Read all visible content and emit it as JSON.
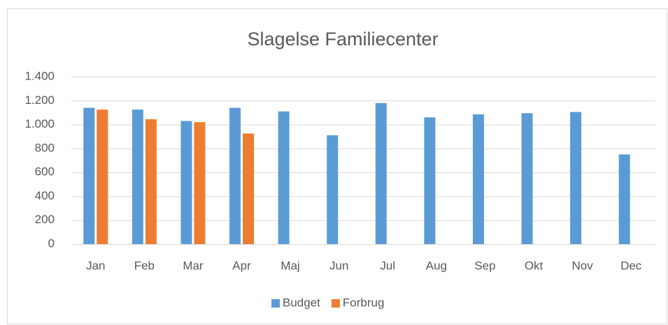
{
  "chart_data": {
    "type": "bar",
    "title": "Slagelse Familiecenter",
    "categories": [
      "Jan",
      "Feb",
      "Mar",
      "Apr",
      "Maj",
      "Jun",
      "Jul",
      "Aug",
      "Sep",
      "Okt",
      "Nov",
      "Dec"
    ],
    "series": [
      {
        "name": "Budget",
        "color": "#5b9bd5",
        "values": [
          1140,
          1125,
          1030,
          1140,
          1110,
          910,
          1180,
          1060,
          1085,
          1095,
          1105,
          750
        ]
      },
      {
        "name": "Forbrug",
        "color": "#ed7d31",
        "values": [
          1125,
          1045,
          1020,
          925,
          null,
          null,
          null,
          null,
          null,
          null,
          null,
          null
        ]
      }
    ],
    "ylim": [
      0,
      1400
    ],
    "yticks": [
      0,
      200,
      400,
      600,
      800,
      {
        "value": 1000,
        "label": "1.000"
      },
      {
        "value": 1200,
        "label": "1.200"
      },
      {
        "value": 1400,
        "label": "1.400"
      }
    ],
    "grid": true,
    "legend": "bottom"
  }
}
